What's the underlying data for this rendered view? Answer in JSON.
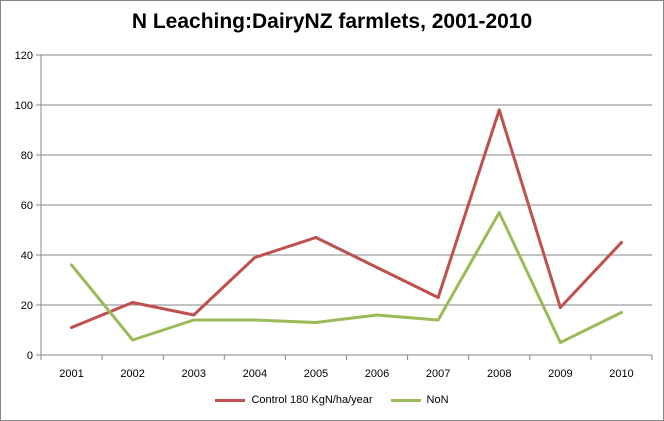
{
  "chart_data": {
    "type": "line",
    "title": "N Leaching:DairyNZ farmlets, 2001-2010",
    "xlabel": "",
    "ylabel": "",
    "categories": [
      "2001",
      "2002",
      "2003",
      "2004",
      "2005",
      "2006",
      "2007",
      "2008",
      "2009",
      "2010"
    ],
    "ylim": [
      0,
      120
    ],
    "yticks": [
      0,
      20,
      40,
      60,
      80,
      100,
      120
    ],
    "grid": true,
    "legend_position": "bottom",
    "series": [
      {
        "name": "Control 180 KgN/ha/year",
        "color": "#C0504D",
        "values": [
          11,
          21,
          16,
          39,
          47,
          35,
          23,
          98,
          19,
          45
        ]
      },
      {
        "name": "NoN",
        "color": "#9BBB59",
        "values": [
          36,
          6,
          14,
          14,
          13,
          16,
          14,
          57,
          5,
          17
        ]
      }
    ]
  }
}
